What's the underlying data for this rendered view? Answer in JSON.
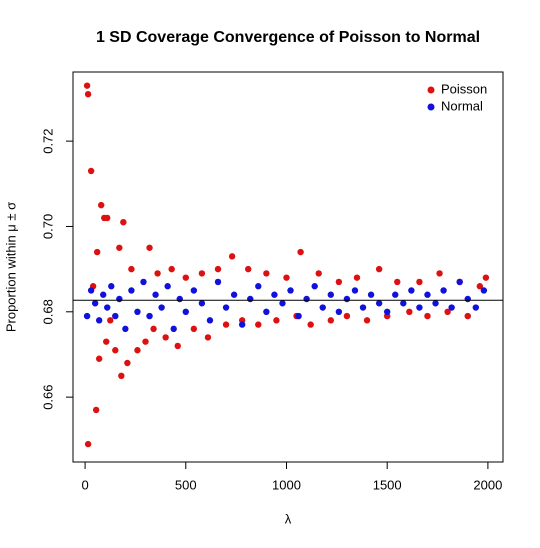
{
  "chart_data": {
    "type": "scatter",
    "title": "1 SD Coverage Convergence of Poisson to Normal",
    "x_label": "λ",
    "y_label": "Proportion within μ ± σ",
    "xlim": [
      -60,
      2075
    ],
    "ylim": [
      0.6448,
      0.7362
    ],
    "xticks": [
      0,
      500,
      1000,
      1500,
      2000
    ],
    "yticks": [
      0.66,
      0.68,
      {
        "value": 0.7,
        "label": "0.70"
      },
      0.72
    ],
    "hline": 0.6827,
    "legend": "topright",
    "series": [
      {
        "name": "Poisson",
        "color": "#dd1111",
        "x": [
          10,
          15,
          15,
          30,
          40,
          55,
          60,
          70,
          80,
          95,
          105,
          110,
          125,
          150,
          170,
          180,
          190,
          210,
          230,
          260,
          300,
          320,
          340,
          360,
          400,
          430,
          460,
          500,
          540,
          580,
          610,
          660,
          700,
          730,
          780,
          810,
          860,
          900,
          950,
          1000,
          1050,
          1070,
          1120,
          1160,
          1220,
          1260,
          1300,
          1350,
          1400,
          1460,
          1500,
          1550,
          1610,
          1660,
          1700,
          1760,
          1800,
          1860,
          1900,
          1960,
          1990
        ],
        "values": [
          0.733,
          0.731,
          0.649,
          0.713,
          0.686,
          0.657,
          0.694,
          0.669,
          0.705,
          0.702,
          0.673,
          0.702,
          0.678,
          0.671,
          0.695,
          0.665,
          0.701,
          0.668,
          0.69,
          0.671,
          0.673,
          0.695,
          0.676,
          0.689,
          0.674,
          0.69,
          0.672,
          0.688,
          0.676,
          0.689,
          0.674,
          0.69,
          0.677,
          0.693,
          0.678,
          0.69,
          0.677,
          0.689,
          0.678,
          0.688,
          0.679,
          0.694,
          0.677,
          0.689,
          0.678,
          0.687,
          0.679,
          0.688,
          0.678,
          0.69,
          0.679,
          0.687,
          0.68,
          0.687,
          0.679,
          0.689,
          0.68,
          0.687,
          0.679,
          0.686,
          0.688
        ]
      },
      {
        "name": "Normal",
        "color": "#1111dd",
        "x": [
          10,
          30,
          50,
          70,
          90,
          110,
          130,
          150,
          170,
          200,
          230,
          260,
          290,
          320,
          350,
          380,
          410,
          440,
          470,
          500,
          540,
          580,
          620,
          660,
          700,
          740,
          780,
          820,
          860,
          900,
          940,
          980,
          1020,
          1060,
          1100,
          1140,
          1180,
          1220,
          1260,
          1300,
          1340,
          1380,
          1420,
          1460,
          1500,
          1540,
          1580,
          1620,
          1660,
          1700,
          1740,
          1780,
          1820,
          1860,
          1900,
          1940,
          1980
        ],
        "values": [
          0.679,
          0.685,
          0.682,
          0.678,
          0.684,
          0.681,
          0.686,
          0.679,
          0.683,
          0.676,
          0.685,
          0.68,
          0.687,
          0.679,
          0.684,
          0.681,
          0.686,
          0.676,
          0.683,
          0.68,
          0.685,
          0.682,
          0.678,
          0.687,
          0.681,
          0.684,
          0.677,
          0.683,
          0.686,
          0.68,
          0.684,
          0.682,
          0.685,
          0.679,
          0.683,
          0.686,
          0.681,
          0.684,
          0.68,
          0.683,
          0.685,
          0.681,
          0.684,
          0.682,
          0.68,
          0.684,
          0.682,
          0.685,
          0.681,
          0.684,
          0.682,
          0.685,
          0.681,
          0.687,
          0.683,
          0.681,
          0.685
        ]
      }
    ]
  }
}
